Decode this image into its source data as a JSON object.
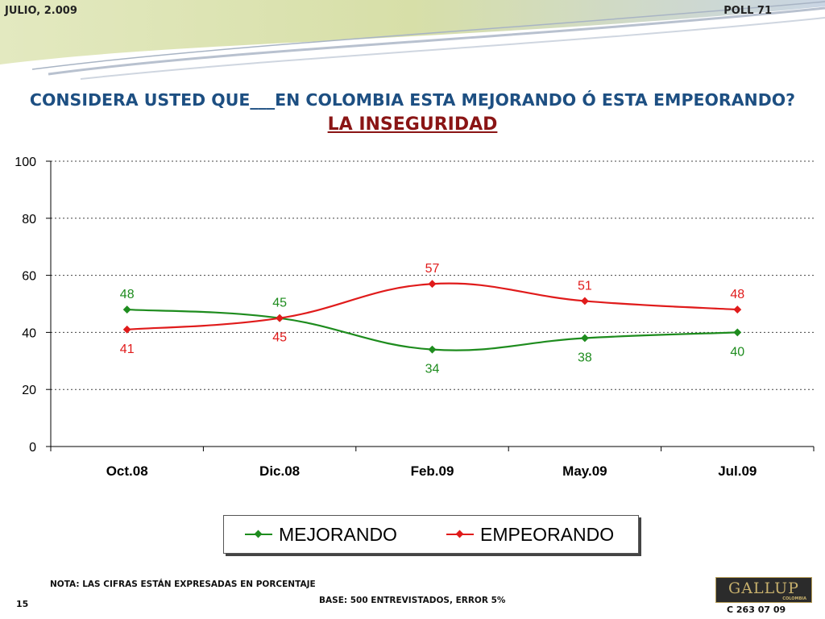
{
  "header": {
    "date": "JULIO, 2.009",
    "poll": "POLL 71"
  },
  "title": {
    "line1": "CONSIDERA USTED QUE___EN COLOMBIA ESTA MEJORANDO Ó ESTA EMPEORANDO?",
    "line2": "LA INSEGURIDAD"
  },
  "chart_data": {
    "type": "line",
    "categories": [
      "Oct.08",
      "Dic.08",
      "Feb.09",
      "May.09",
      "Jul.09"
    ],
    "series": [
      {
        "name": "MEJORANDO",
        "values": [
          48,
          45,
          34,
          38,
          40
        ],
        "color": "#1e8c1e"
      },
      {
        "name": "EMPEORANDO",
        "values": [
          41,
          45,
          57,
          51,
          48
        ],
        "color": "#e01b1b"
      }
    ],
    "ylim": [
      0,
      100
    ],
    "yticks": [
      0,
      20,
      40,
      60,
      80,
      100
    ],
    "grid": true,
    "legend_position": "bottom"
  },
  "footer": {
    "note": "NOTA: LAS CIFRAS ESTÁN EXPRESADAS EN PORCENTAJE",
    "base": "BASE: 500 ENTREVISTADOS, ERROR 5%",
    "page_number": "15",
    "logo_text": "GALLUP",
    "logo_subtext": "COLOMBIA",
    "code": "C 263 07 09"
  }
}
